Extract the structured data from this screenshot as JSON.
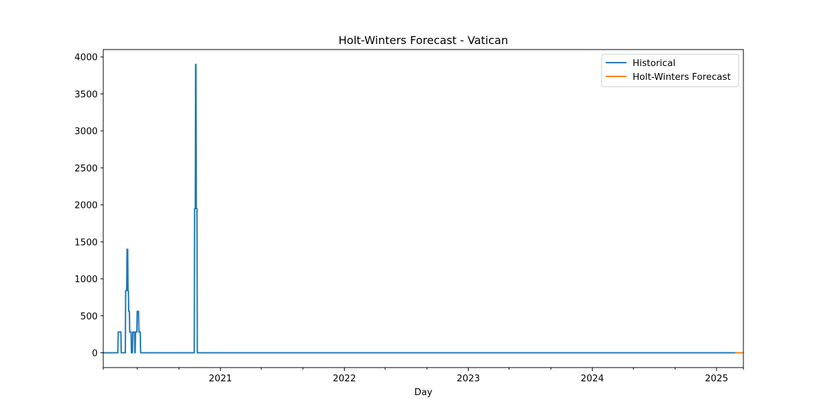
{
  "chart_data": {
    "type": "line",
    "title": "Holt-Winters Forecast - Vatican",
    "xlabel": "Day",
    "ylabel": "",
    "xlim": [
      "2020-01-22",
      "2025-03-21"
    ],
    "ylim": [
      -200,
      4100
    ],
    "yticks": [
      0,
      500,
      1000,
      1500,
      2000,
      2500,
      3000,
      3500,
      4000
    ],
    "xticks": [
      {
        "date": "2021-01-01",
        "label": "2021"
      },
      {
        "date": "2022-01-01",
        "label": "2022"
      },
      {
        "date": "2023-01-01",
        "label": "2023"
      },
      {
        "date": "2024-01-01",
        "label": "2024"
      },
      {
        "date": "2025-01-01",
        "label": "2025"
      }
    ],
    "x_minor_ticks": [
      "2020-05-01",
      "2020-09-01",
      "2021-05-01",
      "2021-09-01",
      "2022-05-01",
      "2022-09-01",
      "2023-05-01",
      "2023-09-01",
      "2024-05-01",
      "2024-09-01"
    ],
    "legend_position": "top-right",
    "grid": false,
    "series": [
      {
        "name": "Historical",
        "color": "#1f77b4",
        "x": [
          "2020-01-22",
          "2020-03-05",
          "2020-03-06",
          "2020-03-14",
          "2020-03-15",
          "2020-03-27",
          "2020-03-28",
          "2020-03-31",
          "2020-04-01",
          "2020-04-03",
          "2020-04-04",
          "2020-04-05",
          "2020-04-06",
          "2020-04-08",
          "2020-04-09",
          "2020-04-13",
          "2020-04-14",
          "2020-04-17",
          "2020-04-18",
          "2020-04-23",
          "2020-04-24",
          "2020-04-25",
          "2020-04-26",
          "2020-04-30",
          "2020-05-01",
          "2020-05-05",
          "2020-05-06",
          "2020-05-10",
          "2020-05-11",
          "2020-10-16",
          "2020-10-17",
          "2020-10-19",
          "2020-10-20",
          "2020-10-21",
          "2020-10-22",
          "2020-10-24",
          "2020-10-25",
          "2025-02-26"
        ],
        "y": [
          0,
          0,
          280,
          280,
          0,
          0,
          840,
          840,
          1400,
          1400,
          840,
          840,
          560,
          560,
          280,
          280,
          0,
          0,
          280,
          280,
          0,
          0,
          280,
          280,
          560,
          560,
          280,
          280,
          0,
          0,
          1950,
          1950,
          3900,
          3900,
          1950,
          1950,
          0,
          0
        ]
      },
      {
        "name": "Holt-Winters Forecast",
        "color": "#ff7f0e",
        "x": [
          "2025-02-26",
          "2025-03-21"
        ],
        "y": [
          0,
          0
        ]
      }
    ]
  }
}
